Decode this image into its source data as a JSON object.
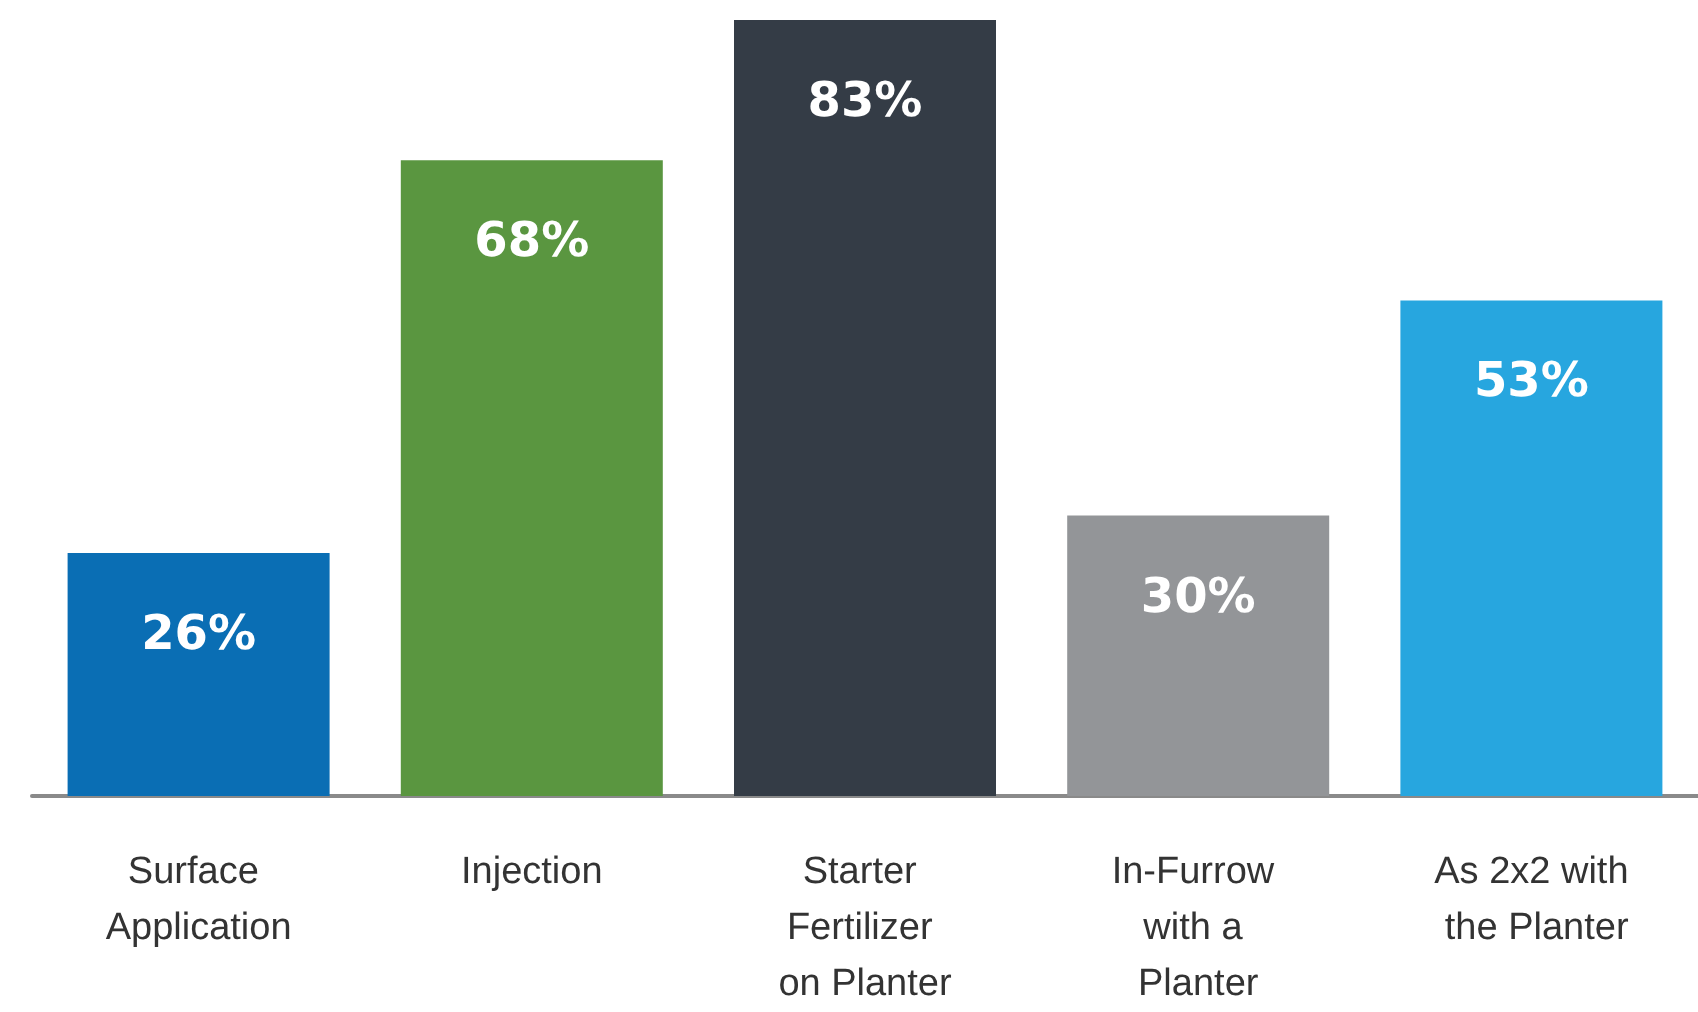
{
  "chart_data": {
    "type": "bar",
    "categories": [
      "Surface Application",
      "Injection",
      "Starter Fertilizer on Planter",
      "In-Furrow with a Planter",
      "As 2x2 with the Planter"
    ],
    "values": [
      26,
      68,
      83,
      30,
      53
    ],
    "colors": [
      "#0a6eb4",
      "#5a9640",
      "#343c46",
      "#939598",
      "#27a6df"
    ],
    "value_labels": [
      "26%",
      "68%",
      "83%",
      "30%",
      "53%"
    ]
  }
}
